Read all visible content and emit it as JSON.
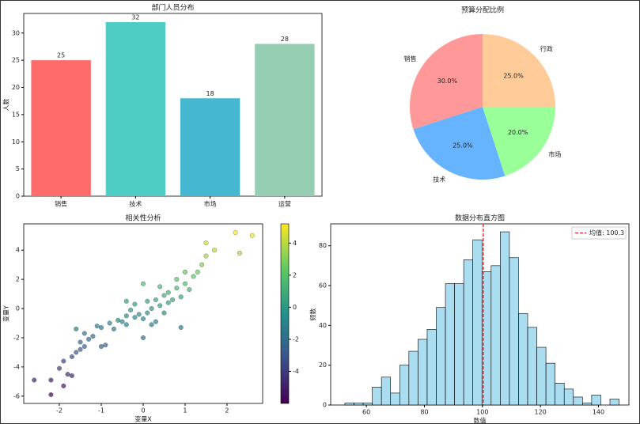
{
  "chart_data": [
    {
      "type": "bar",
      "title": "部门人员分布",
      "ylabel": "人数",
      "categories": [
        "销售",
        "技术",
        "市场",
        "运营"
      ],
      "values": [
        25,
        32,
        18,
        28
      ],
      "colors": [
        "#ff6b6b",
        "#4ecdc4",
        "#45b7d1",
        "#96ceb4"
      ],
      "ylim": [
        0,
        33.6
      ],
      "yticks": [
        0,
        5,
        10,
        15,
        20,
        25,
        30
      ]
    },
    {
      "type": "pie",
      "title": "预算分配比例",
      "categories": [
        "销售",
        "技术",
        "市场",
        "行政"
      ],
      "values": [
        30,
        25,
        20,
        25
      ],
      "value_labels": [
        "30.0%",
        "25.0%",
        "20.0%",
        "25.0%"
      ],
      "colors": [
        "#ff9999",
        "#66b3ff",
        "#99ff99",
        "#ffcc99"
      ],
      "start_angle": 90
    },
    {
      "type": "scatter",
      "title": "相关性分析",
      "xlabel": "变量X",
      "ylabel": "变量Y",
      "x": [
        -2.6,
        -2.2,
        -2.2,
        -2.0,
        -1.9,
        -1.8,
        -1.7,
        -1.9,
        -1.7,
        -1.6,
        -1.5,
        -1.5,
        -1.4,
        -1.3,
        -1.4,
        -1.2,
        -1.1,
        -1.0,
        -0.9,
        -0.8,
        -0.7,
        -0.6,
        -0.5,
        -0.4,
        -0.4,
        -0.3,
        -0.2,
        -0.1,
        0.0,
        0.0,
        0.1,
        0.1,
        0.2,
        0.3,
        0.3,
        0.4,
        0.5,
        0.5,
        0.6,
        0.6,
        0.7,
        0.8,
        0.9,
        0.9,
        1.0,
        1.1,
        1.2,
        1.3,
        1.4,
        1.5,
        1.5,
        1.7,
        0.8,
        0.0,
        -0.4,
        2.2,
        2.3,
        2.6,
        -1.0,
        -1.6,
        0.4,
        1.0,
        -0.2,
        0.2
      ],
      "values": [
        -4.9,
        -5.9,
        -4.9,
        -4.1,
        -3.6,
        -4.5,
        -4.6,
        -5.3,
        -3.3,
        -3.0,
        -2.8,
        -2.3,
        -2.6,
        -2.1,
        -1.7,
        -1.9,
        -1.2,
        -1.3,
        -2.5,
        -1.0,
        -1.4,
        -0.8,
        -0.9,
        -1.1,
        -0.5,
        -0.1,
        -0.6,
        -0.4,
        -2.0,
        -0.7,
        -0.3,
        0.5,
        0.0,
        -0.9,
        0.6,
        0.2,
        -0.3,
        0.9,
        0.4,
        1.1,
        0.6,
        1.4,
        0.8,
        -1.3,
        1.7,
        1.3,
        2.2,
        2.5,
        3.0,
        3.6,
        4.5,
        4.0,
        2.0,
        1.7,
        0.5,
        5.2,
        3.8,
        5.0,
        -2.6,
        -1.4,
        1.5,
        2.5,
        0.3,
        -1.1
      ],
      "xlim": [
        -2.85,
        2.85
      ],
      "xticks": [
        -2,
        -1,
        0,
        1,
        2
      ],
      "ylim": [
        -6.5,
        5.8
      ],
      "yticks": [
        -6,
        -4,
        -2,
        0,
        2,
        4
      ],
      "colorbar": {
        "colormap": "viridis",
        "lim": [
          -6,
          5.2
        ],
        "ticks": [
          -4,
          -2,
          0,
          2,
          4
        ]
      }
    },
    {
      "type": "histogram",
      "title": "数据分布直方图",
      "xlabel": "数值",
      "ylabel": "频数",
      "bins": [
        52.6,
        55.75,
        58.9,
        62.05,
        65.2,
        68.35,
        71.5,
        74.65,
        77.8,
        80.95,
        84.1,
        87.25,
        90.4,
        93.55,
        96.7,
        99.85,
        103,
        106.15,
        109.3,
        112.45,
        115.6,
        118.75,
        121.9,
        125.05,
        128.2,
        131.35,
        134.5,
        137.65,
        140.8,
        143.95,
        147.1
      ],
      "values": [
        1,
        1,
        1,
        9,
        14,
        6,
        20,
        27,
        33,
        38,
        49,
        61,
        61,
        73,
        83,
        67,
        70,
        87,
        74,
        46,
        39,
        29,
        21,
        11,
        8,
        4,
        1,
        5,
        0,
        3
      ],
      "color": "#87ceeb",
      "xlim": [
        47.7,
        150.5
      ],
      "xticks": [
        60,
        80,
        100,
        120,
        140
      ],
      "ylim": [
        0,
        91
      ],
      "yticks": [
        0,
        20,
        40,
        60,
        80
      ],
      "mean_line": {
        "value": 100.3,
        "label": "均值: 100.3",
        "color": "#e41a1c"
      }
    }
  ]
}
